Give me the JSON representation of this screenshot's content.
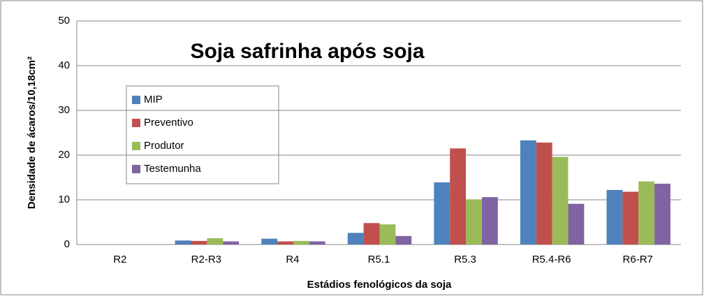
{
  "chart_data": {
    "type": "bar",
    "title": "Soja safrinha após soja",
    "x_label": "Estádios fenológicos da soja",
    "y_label": "Densidade de ácaros/10,18cm²",
    "categories": [
      "R2",
      "R2-R3",
      "R4",
      "R5.1",
      "R5.3",
      "R5.4-R6",
      "R6-R7"
    ],
    "series": [
      {
        "name": "MIP",
        "color": "#4f81bd",
        "values": [
          0,
          0.9,
          1.3,
          2.6,
          13.9,
          23.3,
          12.2
        ]
      },
      {
        "name": "Preventivo",
        "color": "#c0504d",
        "values": [
          0,
          0.8,
          0.7,
          4.8,
          21.5,
          22.8,
          11.8
        ]
      },
      {
        "name": "Produtor",
        "color": "#9bbb59",
        "values": [
          0,
          1.4,
          0.8,
          4.5,
          10.1,
          19.6,
          14.1
        ]
      },
      {
        "name": "Testemunha",
        "color": "#8064a2",
        "values": [
          0,
          0.7,
          0.7,
          1.9,
          10.6,
          9.1,
          13.6
        ]
      }
    ],
    "ylim": [
      0,
      50
    ],
    "yticks": [
      0,
      10,
      20,
      30,
      40,
      50
    ],
    "grid": true
  }
}
